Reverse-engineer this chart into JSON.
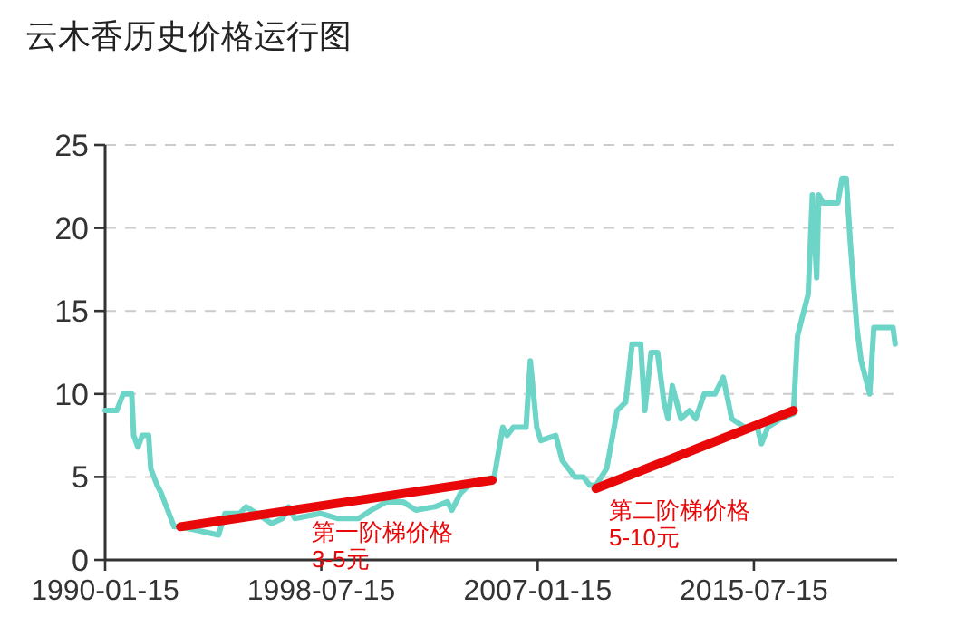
{
  "chart_data": {
    "type": "line",
    "title": "云木香历史价格运行图",
    "xlim": [
      "1990-01-15",
      "2021-03"
    ],
    "xticks": [
      "1990-01-15",
      "1998-07-15",
      "2007-01-15",
      "2015-07-15"
    ],
    "ylim": [
      0,
      25
    ],
    "yticks": [
      0,
      5,
      10,
      15,
      20,
      25
    ],
    "grid": "y",
    "marker": "none",
    "line_style": "solid",
    "series": [
      {
        "color": "#6dd5c8",
        "x": [
          "1990-01-15",
          "1990-07",
          "1990-10",
          "1991-02",
          "1991-03",
          "1991-05",
          "1991-07",
          "1991-10",
          "1991-11",
          "1992-02",
          "1992-04",
          "1992-07",
          "1992-10",
          "1993-01",
          "1994-07",
          "1994-10",
          "1995-05",
          "1995-08",
          "1996-01",
          "1996-08",
          "1997-01",
          "1997-04",
          "1997-07",
          "1998-07",
          "1999-03",
          "2000-01",
          "2000-07",
          "2001-02",
          "2001-10",
          "2002-04",
          "2003-01",
          "2003-07",
          "2003-09",
          "2004-01",
          "2004-05",
          "2005-05",
          "2005-09",
          "2005-11",
          "2006-02",
          "2006-08",
          "2006-10",
          "2007-01",
          "2007-03",
          "2007-10",
          "2008-01",
          "2008-04",
          "2008-07",
          "2008-11",
          "2009-02",
          "2009-05",
          "2009-10",
          "2010-03",
          "2010-07",
          "2010-10",
          "2011-02",
          "2011-04",
          "2011-07",
          "2011-10",
          "2012-01",
          "2012-03",
          "2012-05",
          "2012-09",
          "2013-01",
          "2013-04",
          "2013-08",
          "2014-01",
          "2014-05",
          "2014-09",
          "2015-03",
          "2015-09",
          "2015-11",
          "2016-02",
          "2016-08",
          "2017-02",
          "2017-04",
          "2017-07",
          "2017-09",
          "2017-11",
          "2018-01",
          "2018-02",
          "2018-04",
          "2018-11",
          "2019-01",
          "2019-03",
          "2019-05",
          "2019-08",
          "2019-10",
          "2020-02",
          "2020-04",
          "2021-01",
          "2021-02"
        ],
        "values": [
          9,
          9,
          10,
          10,
          7.5,
          6.8,
          7.5,
          7.5,
          5.5,
          4.5,
          4,
          3,
          2,
          2,
          1.5,
          2.8,
          2.8,
          3.2,
          2.8,
          2.2,
          2.5,
          3.2,
          2.5,
          2.8,
          2.5,
          2.5,
          3,
          3.5,
          3.5,
          3,
          3.2,
          3.5,
          3,
          4,
          4.5,
          5,
          8,
          7.5,
          8,
          8,
          12,
          8,
          7.2,
          7.5,
          6,
          5.5,
          5,
          5,
          4.5,
          4.5,
          5.5,
          9,
          9.5,
          13,
          13,
          9,
          12.5,
          12.5,
          9.5,
          8.5,
          10.5,
          8.5,
          9,
          8.5,
          10,
          10,
          11,
          8.5,
          8,
          8,
          7,
          8,
          8.5,
          8.8,
          13.5,
          15,
          16,
          22,
          17,
          22,
          21.5,
          21.5,
          23,
          23,
          19,
          14,
          12,
          10,
          14,
          14,
          13
        ]
      },
      {
        "type": "line",
        "color": "#e8080a",
        "x": [
          "1993-01",
          "2005-04"
        ],
        "values": [
          2,
          4.8
        ]
      },
      {
        "type": "line",
        "color": "#e8080a",
        "x": [
          "2009-05",
          "2017-02"
        ],
        "values": [
          4.3,
          9
        ]
      }
    ],
    "annotations": [
      "第一阶梯价格\n3-5元",
      "第二阶梯价格\n5-10元"
    ]
  }
}
